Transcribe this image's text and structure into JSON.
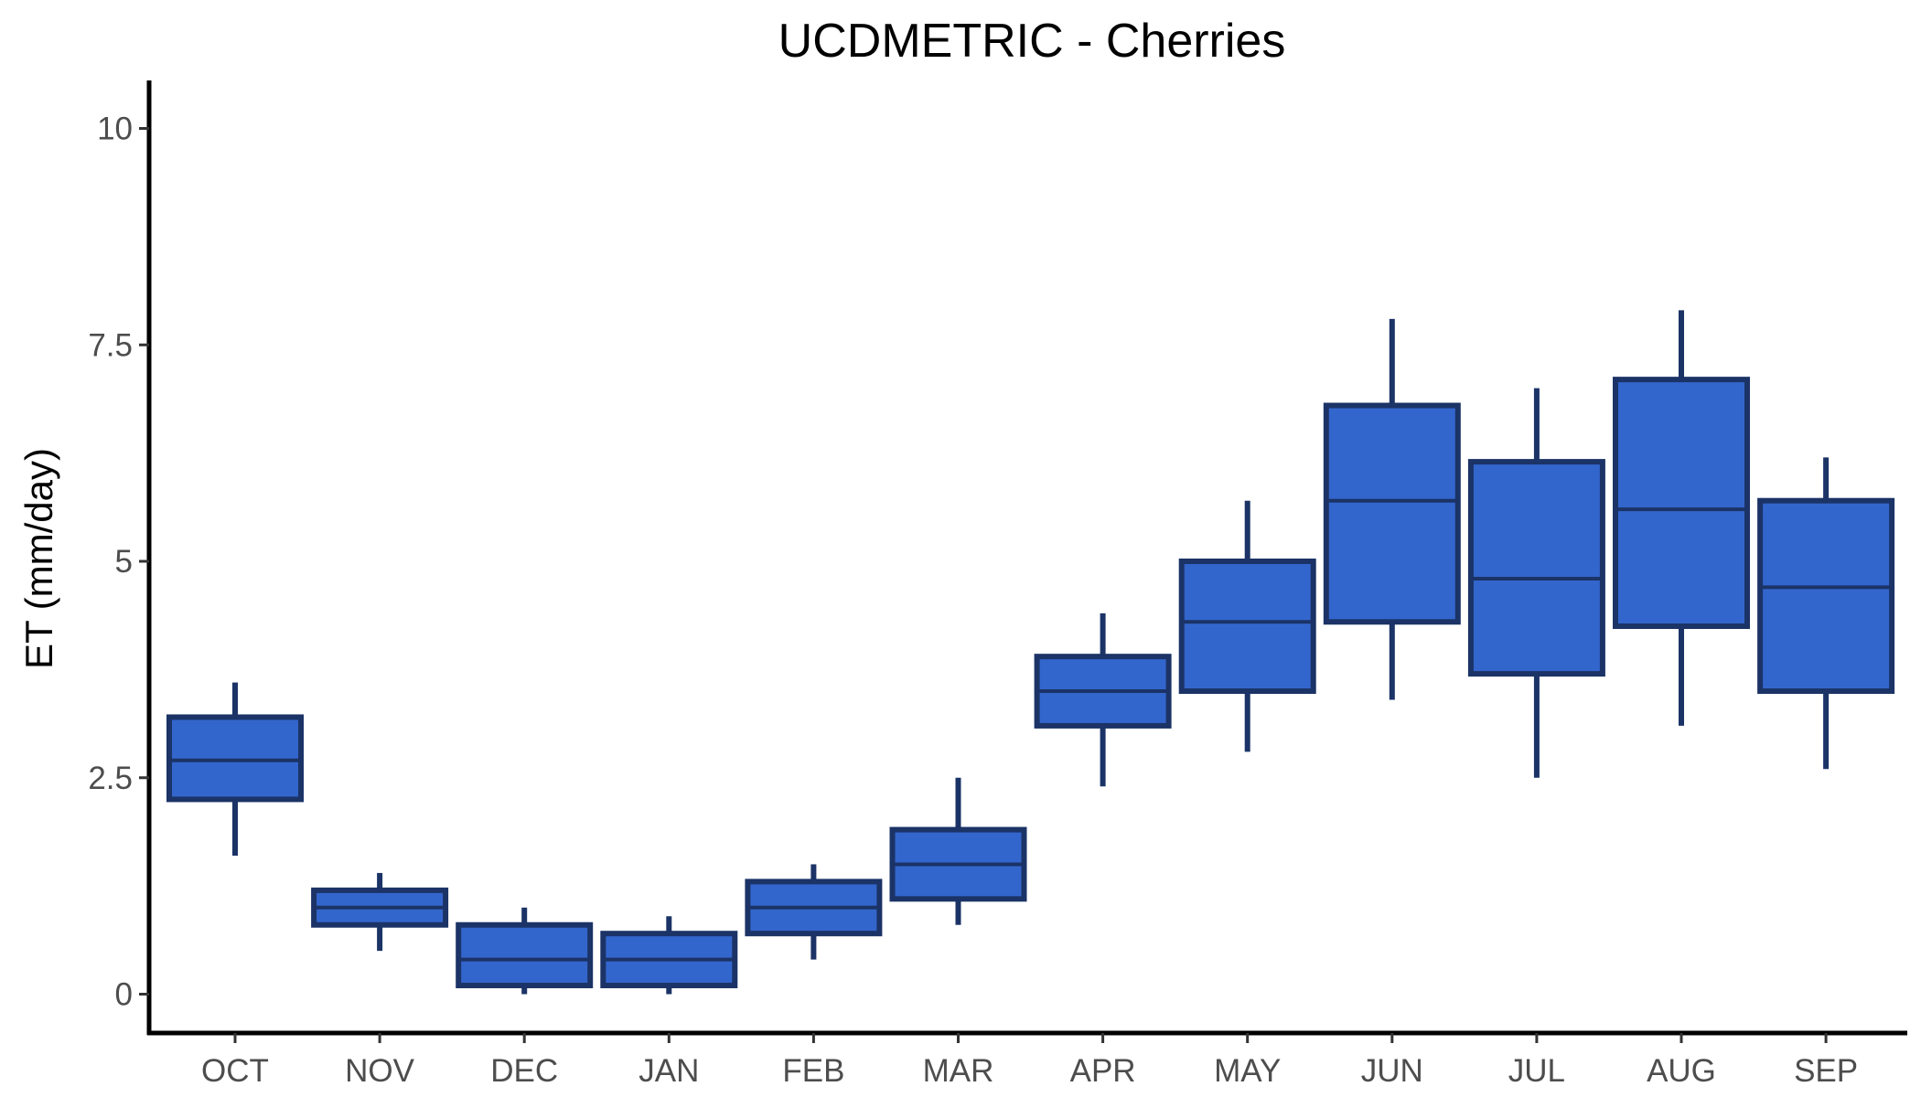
{
  "chart_data": {
    "type": "boxplot",
    "title": "UCDMETRIC - Cherries",
    "xlabel": "",
    "ylabel": "ET (mm/day)",
    "ylim": [
      -0.5,
      10.5
    ],
    "yticks": [
      0,
      2.5,
      5,
      7.5,
      10
    ],
    "ytick_labels": [
      "0",
      "2.5",
      "5",
      "7.5",
      "10"
    ],
    "grid": false,
    "legend": "none",
    "box_fill": "#3366cc",
    "box_stroke": "#1b3366",
    "categories": [
      "OCT",
      "NOV",
      "DEC",
      "JAN",
      "FEB",
      "MAR",
      "APR",
      "MAY",
      "JUN",
      "JUL",
      "AUG",
      "SEP"
    ],
    "boxes": [
      {
        "label": "OCT",
        "whisker_low": 1.6,
        "q1": 2.25,
        "median": 2.7,
        "q3": 3.2,
        "whisker_high": 3.6
      },
      {
        "label": "NOV",
        "whisker_low": 0.5,
        "q1": 0.8,
        "median": 1.0,
        "q3": 1.2,
        "whisker_high": 1.4
      },
      {
        "label": "DEC",
        "whisker_low": 0.0,
        "q1": 0.1,
        "median": 0.4,
        "q3": 0.8,
        "whisker_high": 1.0
      },
      {
        "label": "JAN",
        "whisker_low": 0.0,
        "q1": 0.1,
        "median": 0.4,
        "q3": 0.7,
        "whisker_high": 0.9
      },
      {
        "label": "FEB",
        "whisker_low": 0.4,
        "q1": 0.7,
        "median": 1.0,
        "q3": 1.3,
        "whisker_high": 1.5
      },
      {
        "label": "MAR",
        "whisker_low": 0.8,
        "q1": 1.1,
        "median": 1.5,
        "q3": 1.9,
        "whisker_high": 2.5
      },
      {
        "label": "APR",
        "whisker_low": 2.4,
        "q1": 3.1,
        "median": 3.5,
        "q3": 3.9,
        "whisker_high": 4.4
      },
      {
        "label": "MAY",
        "whisker_low": 2.8,
        "q1": 3.5,
        "median": 4.3,
        "q3": 5.0,
        "whisker_high": 5.7
      },
      {
        "label": "JUN",
        "whisker_low": 3.4,
        "q1": 4.3,
        "median": 5.7,
        "q3": 6.8,
        "whisker_high": 7.8
      },
      {
        "label": "JUL",
        "whisker_low": 2.5,
        "q1": 3.7,
        "median": 4.8,
        "q3": 6.15,
        "whisker_high": 7.0
      },
      {
        "label": "AUG",
        "whisker_low": 3.1,
        "q1": 4.25,
        "median": 5.6,
        "q3": 7.1,
        "whisker_high": 7.9
      },
      {
        "label": "SEP",
        "whisker_low": 2.6,
        "q1": 3.5,
        "median": 4.7,
        "q3": 5.7,
        "whisker_high": 6.2
      }
    ]
  }
}
